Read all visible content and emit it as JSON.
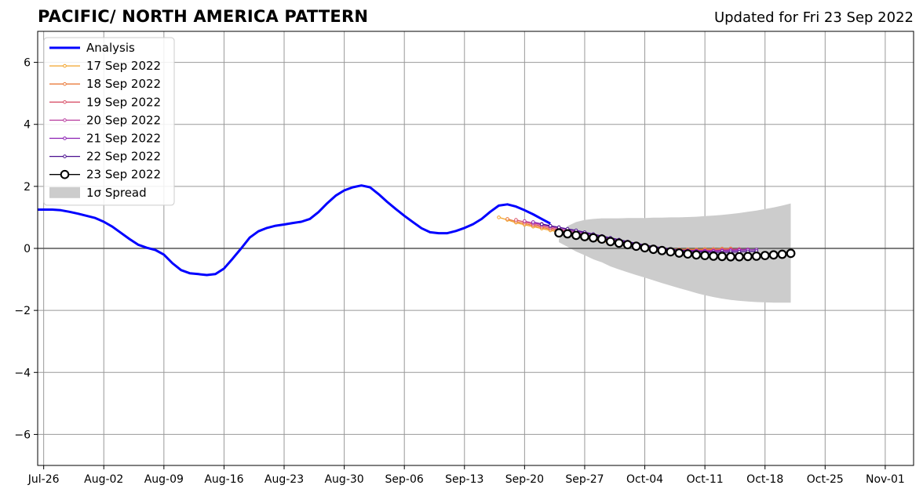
{
  "chart_data": {
    "type": "line",
    "title": "PACIFIC/ NORTH AMERICA PATTERN",
    "subtitle": "Updated for Fri 23 Sep 2022",
    "ylim": [
      -7,
      7
    ],
    "yticks": [
      -6,
      -4,
      -2,
      0,
      2,
      4,
      6
    ],
    "ytick_labels": [
      "−6",
      "−4",
      "−2",
      "0",
      "2",
      "4",
      "6"
    ],
    "x_range_days": [
      -0.7,
      101.3
    ],
    "xticks": [
      {
        "day": 0,
        "label": "Jul-26"
      },
      {
        "day": 7,
        "label": "Aug-02"
      },
      {
        "day": 14,
        "label": "Aug-09"
      },
      {
        "day": 21,
        "label": "Aug-16"
      },
      {
        "day": 28,
        "label": "Aug-23"
      },
      {
        "day": 35,
        "label": "Aug-30"
      },
      {
        "day": 42,
        "label": "Sep-06"
      },
      {
        "day": 49,
        "label": "Sep-13"
      },
      {
        "day": 56,
        "label": "Sep-20"
      },
      {
        "day": 63,
        "label": "Sep-27"
      },
      {
        "day": 70,
        "label": "Oct-04"
      },
      {
        "day": 77,
        "label": "Oct-11"
      },
      {
        "day": 84,
        "label": "Oct-18"
      },
      {
        "day": 91,
        "label": "Oct-25"
      },
      {
        "day": 98,
        "label": "Nov-01"
      }
    ],
    "grid": true,
    "legend_position": "top-left",
    "colors": {
      "analysis": "#0000ff",
      "spread": "#cccccc",
      "grid": "#999999",
      "zero_line": "#555555"
    },
    "analysis": {
      "name": "Analysis",
      "start_day": -1,
      "values": [
        1.25,
        1.25,
        1.25,
        1.23,
        1.18,
        1.12,
        1.05,
        0.98,
        0.86,
        0.7,
        0.5,
        0.3,
        0.12,
        0.02,
        -0.05,
        -0.2,
        -0.48,
        -0.7,
        -0.8,
        -0.83,
        -0.86,
        -0.83,
        -0.65,
        -0.33,
        0.0,
        0.35,
        0.55,
        0.66,
        0.73,
        0.77,
        0.82,
        0.86,
        0.95,
        1.17,
        1.45,
        1.7,
        1.87,
        1.97,
        2.03,
        1.97,
        1.75,
        1.5,
        1.27,
        1.05,
        0.85,
        0.65,
        0.52,
        0.49,
        0.49,
        0.56,
        0.66,
        0.78,
        0.95,
        1.18,
        1.38,
        1.42,
        1.35,
        1.23,
        1.1,
        0.95,
        0.8
      ]
    },
    "forecasts": [
      {
        "name": "17 Sep 2022",
        "color": "#f2a32a",
        "start_day": 53,
        "values": [
          1.0,
          0.92,
          0.83,
          0.76,
          0.7,
          0.64,
          0.58,
          0.52,
          0.46,
          0.4,
          0.34,
          0.28,
          0.23,
          0.18,
          0.14,
          0.1,
          0.06,
          0.03,
          0.01,
          -0.01,
          -0.02,
          -0.03,
          -0.03,
          -0.03,
          -0.02,
          -0.02,
          -0.01
        ]
      },
      {
        "name": "18 Sep 2022",
        "color": "#ea7b3c",
        "start_day": 54,
        "values": [
          0.95,
          0.87,
          0.8,
          0.74,
          0.68,
          0.62,
          0.56,
          0.5,
          0.44,
          0.38,
          0.32,
          0.26,
          0.21,
          0.16,
          0.12,
          0.08,
          0.04,
          0.01,
          -0.01,
          -0.03,
          -0.04,
          -0.04,
          -0.04,
          -0.03,
          -0.02,
          -0.01,
          0.0
        ]
      },
      {
        "name": "19 Sep 2022",
        "color": "#d9546b",
        "start_day": 55,
        "values": [
          0.92,
          0.85,
          0.78,
          0.72,
          0.66,
          0.6,
          0.54,
          0.48,
          0.42,
          0.36,
          0.3,
          0.24,
          0.19,
          0.14,
          0.1,
          0.06,
          0.02,
          -0.01,
          -0.03,
          -0.05,
          -0.06,
          -0.06,
          -0.06,
          -0.05,
          -0.04,
          -0.03,
          -0.02
        ]
      },
      {
        "name": "20 Sep 2022",
        "color": "#b93e9f",
        "start_day": 56,
        "values": [
          0.88,
          0.82,
          0.76,
          0.7,
          0.64,
          0.58,
          0.52,
          0.46,
          0.4,
          0.34,
          0.28,
          0.22,
          0.17,
          0.12,
          0.08,
          0.04,
          0.0,
          -0.03,
          -0.05,
          -0.06,
          -0.07,
          -0.07,
          -0.07,
          -0.06,
          -0.05,
          -0.04,
          -0.03
        ]
      },
      {
        "name": "21 Sep 2022",
        "color": "#8b1fb3",
        "start_day": 57,
        "values": [
          0.85,
          0.79,
          0.73,
          0.68,
          0.62,
          0.56,
          0.5,
          0.44,
          0.38,
          0.32,
          0.26,
          0.2,
          0.15,
          0.1,
          0.06,
          0.02,
          -0.02,
          -0.05,
          -0.07,
          -0.08,
          -0.09,
          -0.09,
          -0.08,
          -0.07,
          -0.06,
          -0.05,
          -0.04
        ]
      },
      {
        "name": "22 Sep 2022",
        "color": "#4a0f8f",
        "start_day": 58,
        "values": [
          0.78,
          0.73,
          0.68,
          0.63,
          0.58,
          0.52,
          0.46,
          0.4,
          0.34,
          0.28,
          0.22,
          0.16,
          0.11,
          0.06,
          0.02,
          -0.02,
          -0.06,
          -0.09,
          -0.11,
          -0.12,
          -0.13,
          -0.13,
          -0.12,
          -0.11,
          -0.1,
          -0.09
        ]
      },
      {
        "name": "23 Sep 2022",
        "color": "#000000",
        "start_day": 60,
        "values": [
          0.5,
          0.47,
          0.42,
          0.38,
          0.34,
          0.3,
          0.22,
          0.17,
          0.12,
          0.07,
          0.02,
          -0.03,
          -0.07,
          -0.11,
          -0.15,
          -0.18,
          -0.21,
          -0.23,
          -0.25,
          -0.26,
          -0.27,
          -0.27,
          -0.26,
          -0.25,
          -0.23,
          -0.21,
          -0.19,
          -0.16
        ]
      }
    ],
    "spread": {
      "name": "1σ Spread",
      "start_day": 60,
      "upper": [
        0.3,
        0.72,
        0.85,
        0.92,
        0.95,
        0.97,
        0.97,
        0.97,
        0.98,
        0.98,
        0.98,
        0.99,
        0.99,
        1.0,
        1.0,
        1.01,
        1.02,
        1.04,
        1.06,
        1.08,
        1.11,
        1.14,
        1.18,
        1.22,
        1.27,
        1.32,
        1.38,
        1.45
      ],
      "lower": [
        0.2,
        0.05,
        -0.1,
        -0.22,
        -0.35,
        -0.45,
        -0.58,
        -0.68,
        -0.77,
        -0.86,
        -0.94,
        -1.03,
        -1.12,
        -1.2,
        -1.28,
        -1.36,
        -1.44,
        -1.51,
        -1.57,
        -1.62,
        -1.66,
        -1.69,
        -1.71,
        -1.73,
        -1.74,
        -1.75,
        -1.75,
        -1.75
      ]
    }
  }
}
